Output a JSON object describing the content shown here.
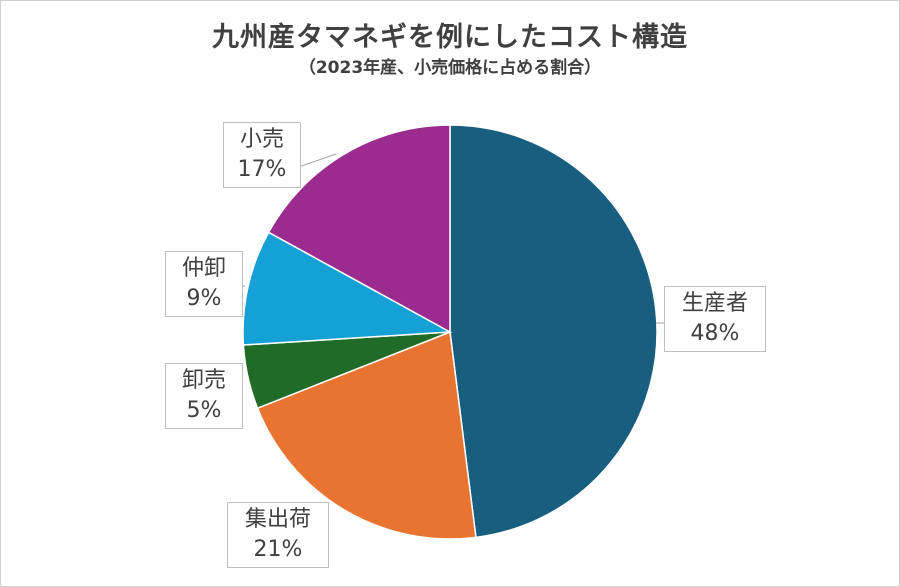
{
  "chart_data": {
    "type": "pie",
    "title": "九州産タマネギを例にしたコスト構造",
    "subtitle": "（2023年産、小売価格に占める割合）",
    "slices": [
      {
        "label": "生産者",
        "value": 48,
        "value_text": "48%",
        "color": "#175e7f"
      },
      {
        "label": "集出荷",
        "value": 21,
        "value_text": "21%",
        "color": "#e97431"
      },
      {
        "label": "卸売",
        "value": 5,
        "value_text": "5%",
        "color": "#1f6b27"
      },
      {
        "label": "仲卸",
        "value": 9,
        "value_text": "9%",
        "color": "#16a1d6"
      },
      {
        "label": "小売",
        "value": 17,
        "value_text": "17%",
        "color": "#9c2b90"
      }
    ],
    "start_angle": "12 o'clock",
    "direction": "clockwise",
    "legend": "none",
    "data_labels": "outside with leader lines"
  }
}
